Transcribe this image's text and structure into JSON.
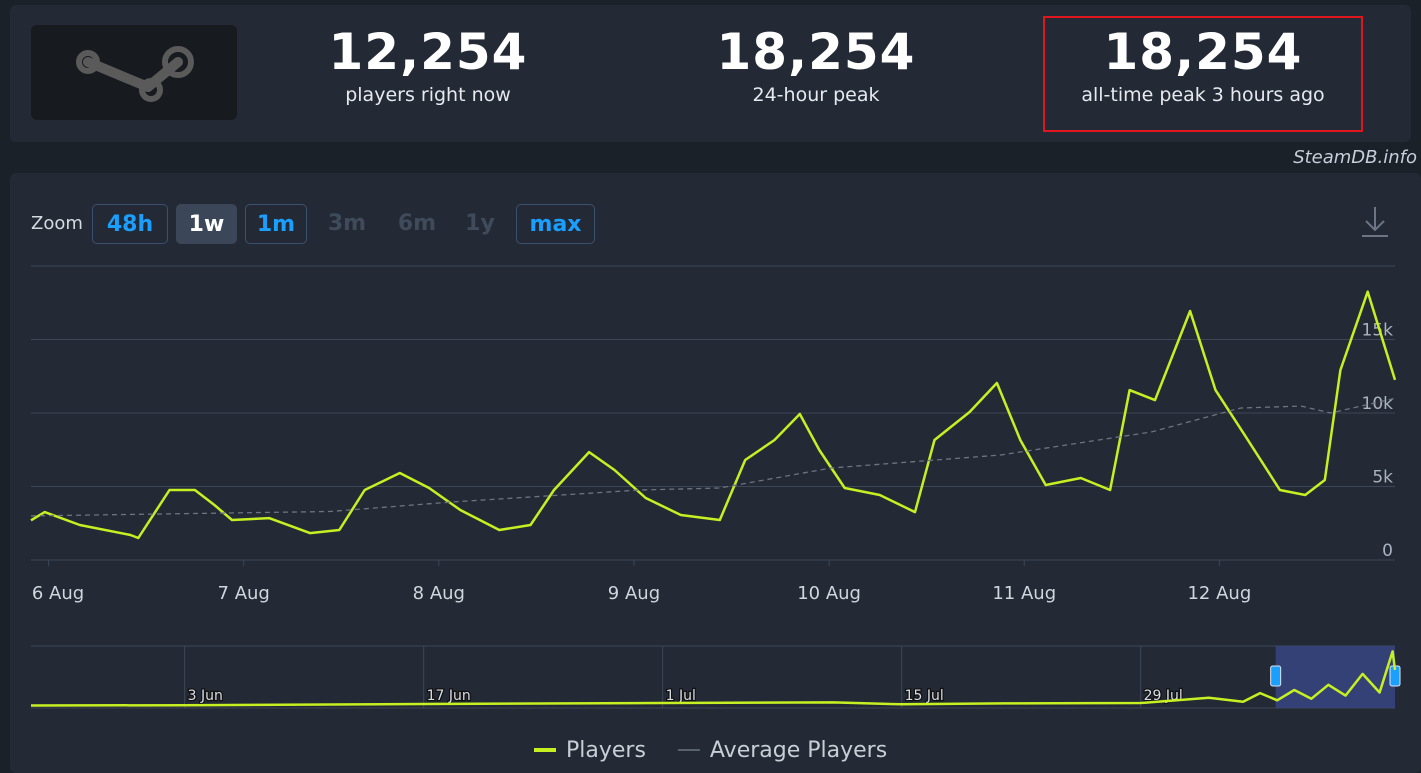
{
  "header": {
    "stats": [
      {
        "value": "12,254",
        "label": "players right now",
        "highlighted": false
      },
      {
        "value": "18,254",
        "label": "24-hour peak",
        "highlighted": false
      },
      {
        "value": "18,254",
        "label": "all-time peak 3 hours ago",
        "highlighted": true
      }
    ],
    "watermark": "SteamDB.info"
  },
  "zoom": {
    "label": "Zoom",
    "buttons": [
      {
        "label": "48h",
        "state": "enabled"
      },
      {
        "label": "1w",
        "state": "active"
      },
      {
        "label": "1m",
        "state": "enabled"
      },
      {
        "label": "3m",
        "state": "disabled"
      },
      {
        "label": "6m",
        "state": "disabled"
      },
      {
        "label": "1y",
        "state": "disabled"
      },
      {
        "label": "max",
        "state": "enabled"
      }
    ]
  },
  "chart_data": [
    {
      "type": "line",
      "xlim": [
        5.91,
        12.9
      ],
      "xticks": [
        {
          "value": 6,
          "label": "6 Aug"
        },
        {
          "value": 7,
          "label": "7 Aug"
        },
        {
          "value": 8,
          "label": "8 Aug"
        },
        {
          "value": 9,
          "label": "9 Aug"
        },
        {
          "value": 10,
          "label": "10 Aug"
        },
        {
          "value": 11,
          "label": "11 Aug"
        },
        {
          "value": 12,
          "label": "12 Aug"
        }
      ],
      "ylim": [
        0,
        20000
      ],
      "yticks": [
        0,
        {
          "value": 5000,
          "label": "5k"
        },
        {
          "value": 10000,
          "label": "10k"
        },
        {
          "value": 15000,
          "label": "15k"
        }
      ],
      "grid": true,
      "legend": "bottom",
      "series": [
        {
          "name": "Players",
          "color": "#c6f022",
          "dashed": false,
          "x": [
            5.91,
            5.98,
            6.16,
            6.42,
            6.46,
            6.62,
            6.75,
            6.85,
            6.94,
            7.13,
            7.34,
            7.49,
            7.62,
            7.8,
            7.95,
            8.11,
            8.31,
            8.47,
            8.59,
            8.77,
            8.9,
            9.06,
            9.24,
            9.44,
            9.57,
            9.72,
            9.85,
            9.95,
            10.08,
            10.26,
            10.44,
            10.54,
            10.72,
            10.86,
            10.98,
            11.11,
            11.29,
            11.44,
            11.54,
            11.67,
            11.85,
            11.98,
            12.13,
            12.31,
            12.44,
            12.54,
            12.62,
            12.76,
            12.9
          ],
          "values": [
            2700,
            3260,
            2380,
            1700,
            1500,
            4760,
            4760,
            3740,
            2720,
            2850,
            1830,
            2040,
            4760,
            5920,
            4900,
            3400,
            2040,
            2380,
            4760,
            7340,
            6120,
            4220,
            3060,
            2720,
            6800,
            8160,
            9930,
            7480,
            4900,
            4420,
            3260,
            8160,
            10070,
            12040,
            8160,
            5100,
            5580,
            4760,
            11560,
            10880,
            16940,
            11560,
            8500,
            4760,
            4420,
            5440,
            12920,
            18254,
            12254
          ]
        },
        {
          "name": "Average Players",
          "color": "#6d7480",
          "dashed": true,
          "x": [
            5.91,
            7.44,
            8.06,
            9.03,
            9.44,
            10.01,
            10.88,
            11.65,
            12.11,
            12.42,
            12.57,
            12.9
          ],
          "values": [
            3000,
            3300,
            3940,
            4760,
            4900,
            6260,
            7140,
            8710,
            10340,
            10470,
            10000,
            11000
          ]
        }
      ]
    },
    {
      "type": "line",
      "xlim": [
        -67,
        12.9
      ],
      "xticks": [
        {
          "value": -58,
          "label": "3 Jun"
        },
        {
          "value": -44,
          "label": "17 Jun"
        },
        {
          "value": -30,
          "label": "1 Jul"
        },
        {
          "value": -16,
          "label": "15 Jul"
        },
        {
          "value": -2,
          "label": "29 Jul"
        }
      ],
      "ylim": [
        0,
        20000
      ],
      "series": [
        {
          "color": "#c6f022",
          "x": [
            -67,
            -58,
            -44,
            -30,
            -20,
            -16,
            -10,
            -2,
            2,
            4,
            5,
            6,
            7,
            8,
            9,
            10,
            11,
            12,
            12.76,
            12.9
          ],
          "values": [
            800,
            900,
            1300,
            1600,
            1800,
            1200,
            1500,
            1600,
            3300,
            2000,
            4800,
            2500,
            5800,
            3000,
            7500,
            4000,
            11000,
            5000,
            18254,
            12254
          ]
        }
      ]
    }
  ]
}
